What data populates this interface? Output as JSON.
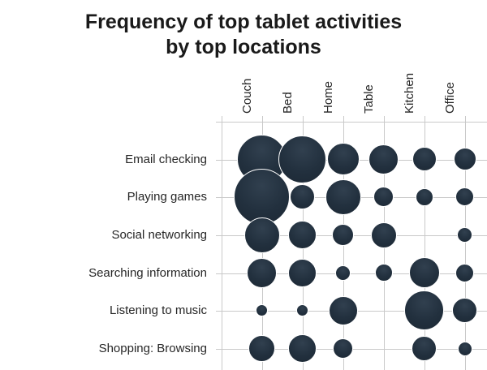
{
  "chart_data": {
    "type": "bubble",
    "title": "Frequency of top tablet activities by top locations",
    "title_lines": [
      "Frequency of top tablet activities",
      "by top locations"
    ],
    "columns": [
      "Couch",
      "Bed",
      "Home",
      "Table",
      "Kitchen",
      "Office"
    ],
    "rows": [
      "Email checking",
      "Playing games",
      "Social networking",
      "Searching information",
      "Listening to music",
      "Shopping: Browsing"
    ],
    "sizes": [
      [
        59,
        57,
        38,
        35,
        28,
        26
      ],
      [
        67,
        29,
        42,
        23,
        20,
        21
      ],
      [
        42,
        33,
        25,
        30,
        0,
        17
      ],
      [
        35,
        33,
        17,
        20,
        36,
        21
      ],
      [
        13,
        13,
        34,
        0,
        47,
        29
      ],
      [
        31,
        33,
        23,
        0,
        29,
        16
      ]
    ],
    "size_metric": "relative frequency shown as bubble diameter in px; 0 = no bubble",
    "legend": "none",
    "grid": true,
    "axis_tick_marks": true,
    "colors": {
      "bubble_dark": "#1c2834",
      "bubble_mid": "#22303e",
      "bubble_light": "#31404f",
      "bubble_stroke": "#ffffff",
      "grid": "#c9c9c9",
      "title_text": "#1a1a1a",
      "label_text": "#262626"
    }
  }
}
